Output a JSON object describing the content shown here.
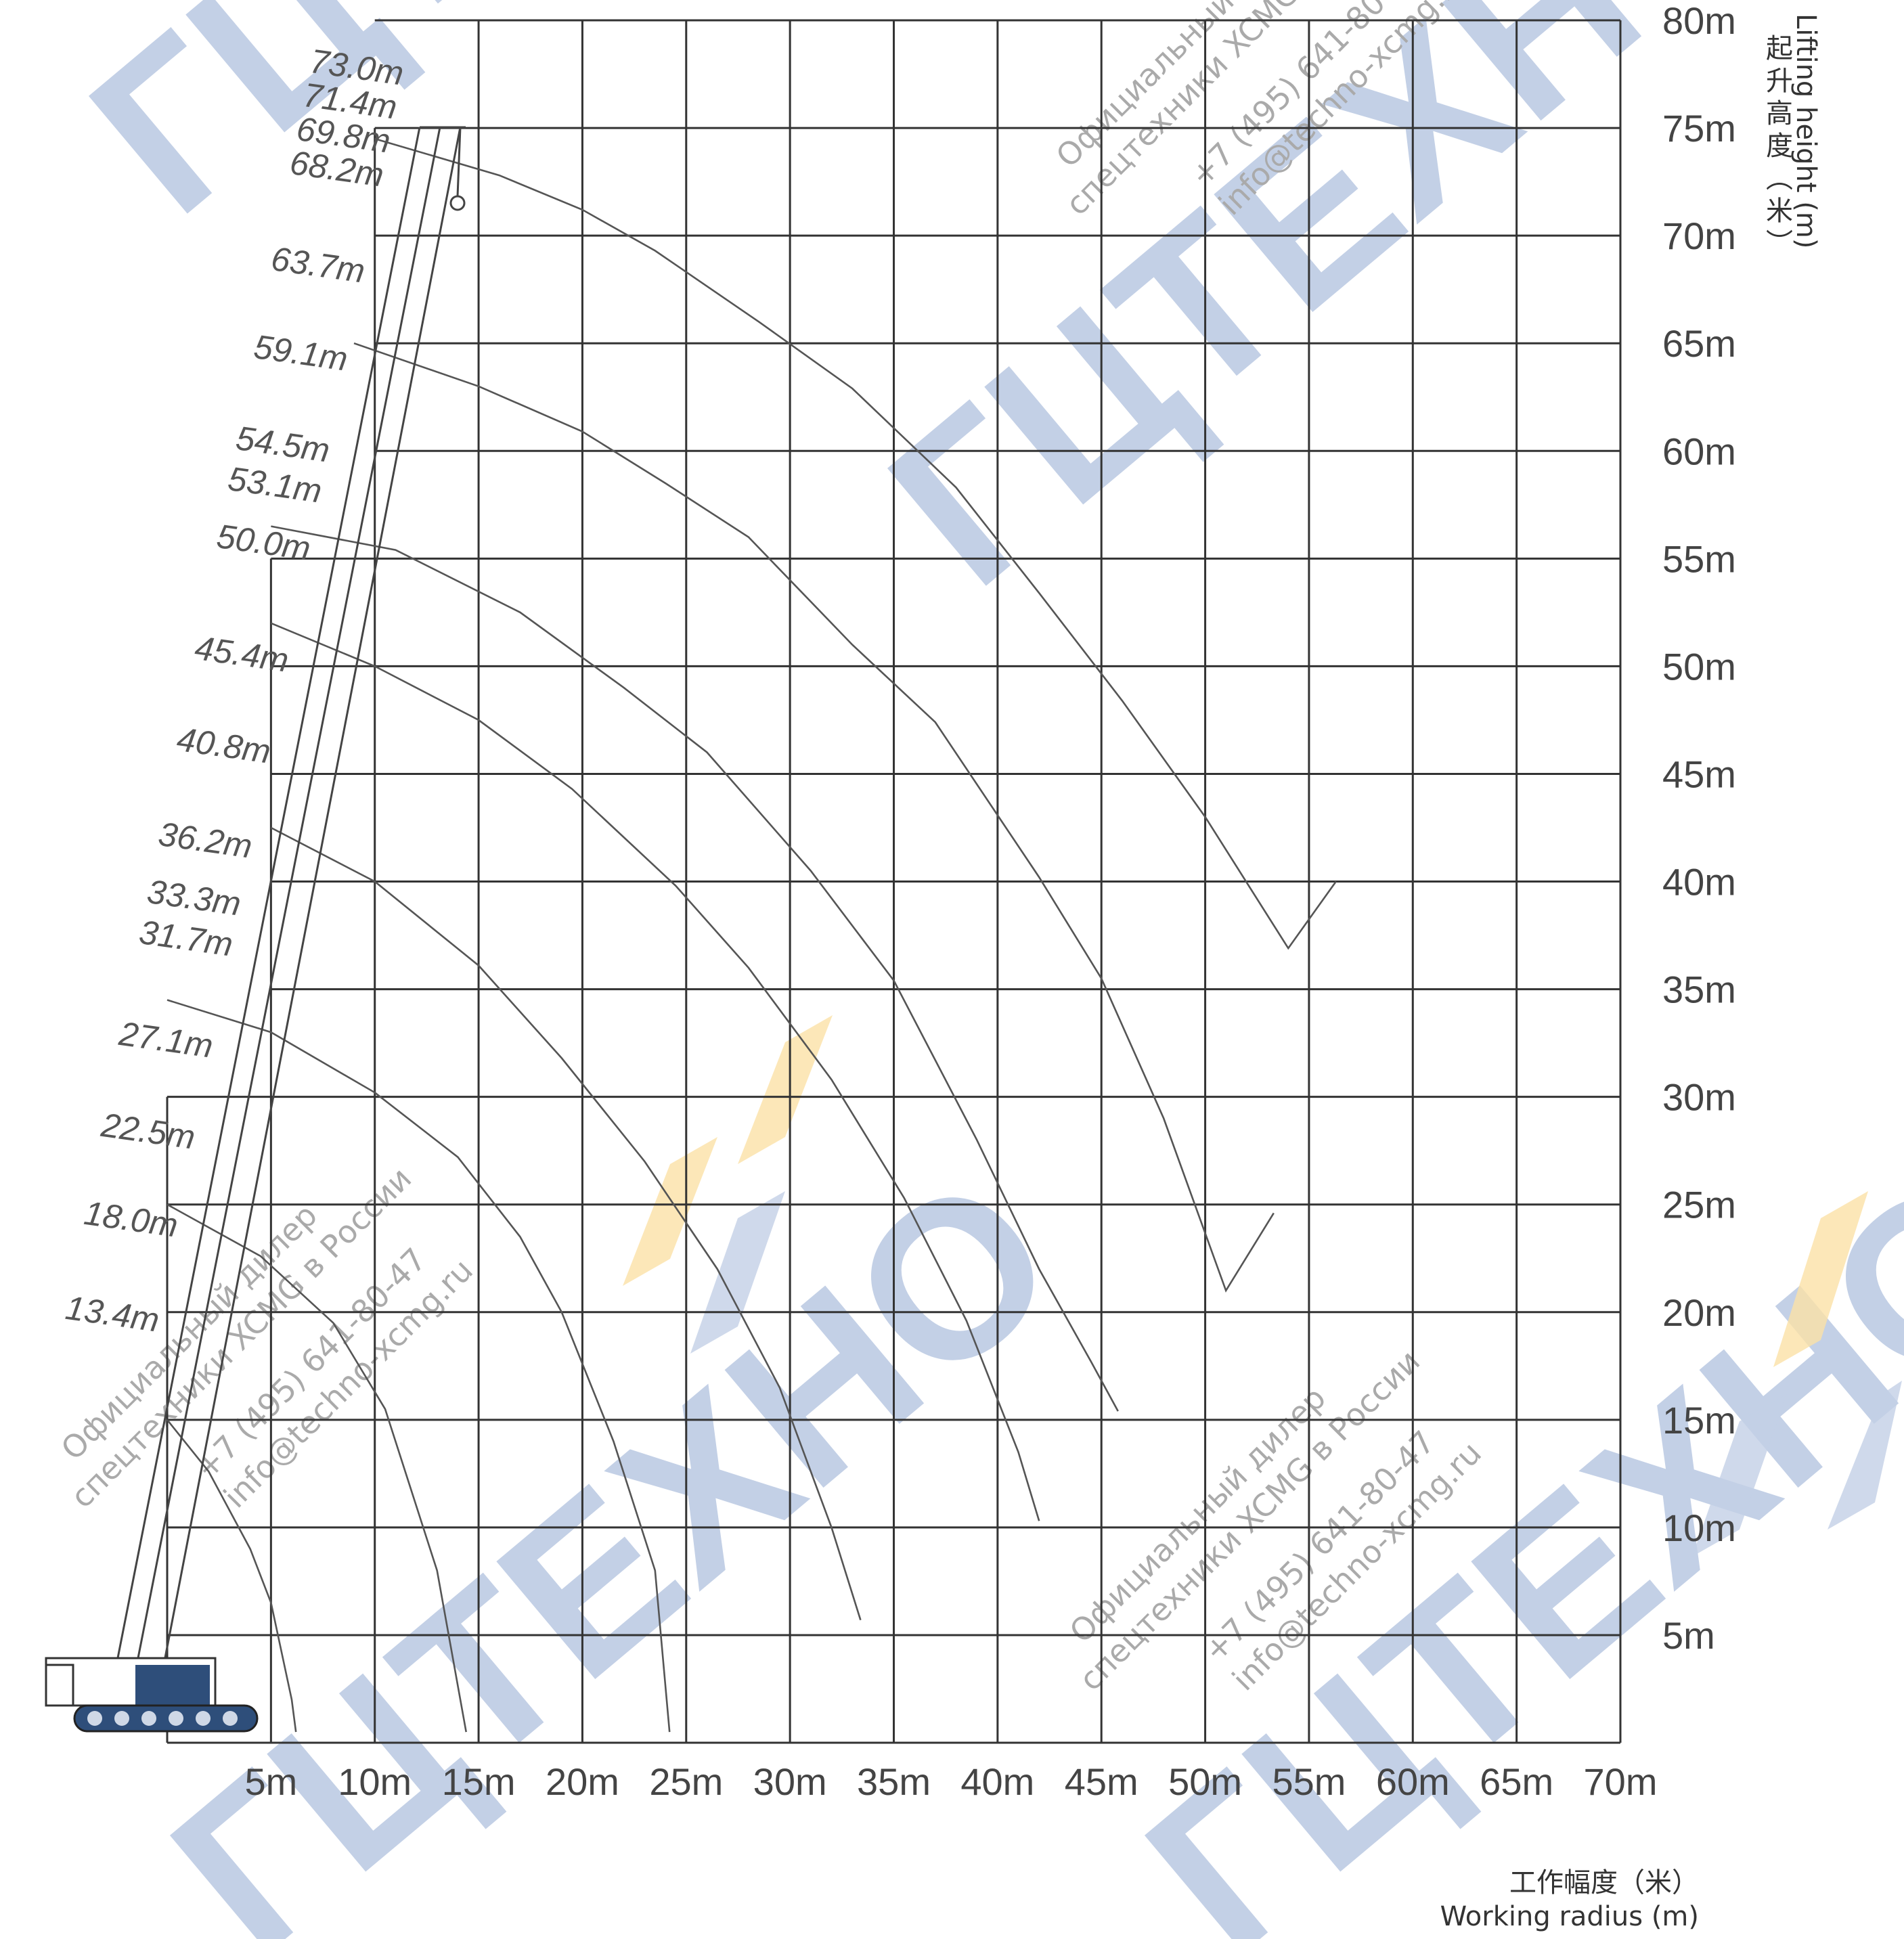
{
  "colors": {
    "grid": "#333333",
    "curve": "#555555",
    "text": "#444444",
    "watermark_blue": "#c3d0e6",
    "watermark_yellow": "#fbe1a6",
    "crane_dark": "#2e4e7a"
  },
  "axis_titles": {
    "y_cn": "起升高度（米）",
    "y_en": "Lifting height (m)",
    "x_cn": "工作幅度（米）",
    "x_en": "Working radius (m)"
  },
  "watermark": {
    "logo": "ГЦТЕХНО",
    "dealer": "Официальный дилер",
    "dealer_sub": "спецтехники XCMG в России",
    "phone": "+7 (495) 641-80-47",
    "email": "info@techno-xcmg.ru"
  },
  "chart_data": {
    "type": "line",
    "title": "",
    "xlabel": "工作幅度（米） Working radius (m)",
    "ylabel": "起升高度（米） Lifting height (m)",
    "xlim": [
      0,
      70
    ],
    "ylim": [
      0,
      80
    ],
    "x_ticks": [
      "5m",
      "10m",
      "15m",
      "20m",
      "25m",
      "30m",
      "35m",
      "40m",
      "45m",
      "50m",
      "55m",
      "60m",
      "65m",
      "70m"
    ],
    "y_ticks": [
      "5m",
      "10m",
      "15m",
      "20m",
      "25m",
      "30m",
      "35m",
      "40m",
      "45m",
      "50m",
      "55m",
      "60m",
      "65m",
      "70m",
      "75m",
      "80m"
    ],
    "grid": true,
    "boom_lengths": [
      "73.0m",
      "71.4m",
      "69.8m",
      "68.2m",
      "63.7m",
      "59.1m",
      "54.5m",
      "53.1m",
      "50.0m",
      "45.4m",
      "40.8m",
      "36.2m",
      "33.3m",
      "31.7m",
      "27.1m",
      "22.5m",
      "18.0m",
      "13.4m"
    ],
    "series": [
      {
        "x": [
          0,
          2,
          4,
          5,
          6,
          6.2
        ],
        "y": [
          15,
          12.6,
          9,
          6.5,
          2,
          0.5
        ]
      },
      {
        "x": [
          0,
          4.5,
          8,
          10.5,
          13,
          14.4
        ],
        "y": [
          25,
          22.6,
          19.5,
          15.5,
          8,
          0.5
        ]
      },
      {
        "x": [
          0,
          5,
          10,
          14,
          17,
          19,
          21.5,
          23.5,
          24.2
        ],
        "y": [
          34.5,
          33,
          30.2,
          27.2,
          23.5,
          20,
          14,
          8,
          0.5
        ]
      },
      {
        "x": [
          5,
          10,
          15,
          19,
          23,
          26.5,
          29.5,
          32,
          33.4
        ],
        "y": [
          42.5,
          40,
          36.1,
          31.8,
          27,
          22,
          16.5,
          10,
          5.7
        ]
      },
      {
        "x": [
          5,
          10,
          15,
          19.5,
          24.5,
          28,
          32,
          35.5,
          38.5,
          41,
          42
        ],
        "y": [
          52,
          50,
          47.5,
          44.3,
          39.8,
          36,
          30.8,
          25.3,
          19.6,
          13.5,
          10.3
        ]
      },
      {
        "x": [
          5,
          11,
          17,
          22,
          26,
          31,
          35,
          39,
          42,
          44.5,
          45.8
        ],
        "y": [
          56.5,
          55.4,
          52.5,
          49,
          46,
          40.5,
          35.4,
          28,
          22,
          17.7,
          15.4
        ]
      },
      {
        "x": [
          9,
          15,
          20,
          24,
          28,
          33,
          37,
          42,
          45,
          48,
          51,
          53.3
        ],
        "y": [
          65,
          63,
          60.9,
          58.5,
          56,
          51,
          47.4,
          40.2,
          35.5,
          29,
          21,
          24.6
        ]
      },
      {
        "x": [
          10,
          16,
          20,
          23.5,
          28.5,
          33,
          38,
          42,
          46,
          50,
          54,
          56.3
        ],
        "y": [
          74.5,
          72.8,
          71.2,
          69.3,
          66,
          62.9,
          58.3,
          53.4,
          48.4,
          43,
          36.9,
          40
        ]
      }
    ]
  }
}
